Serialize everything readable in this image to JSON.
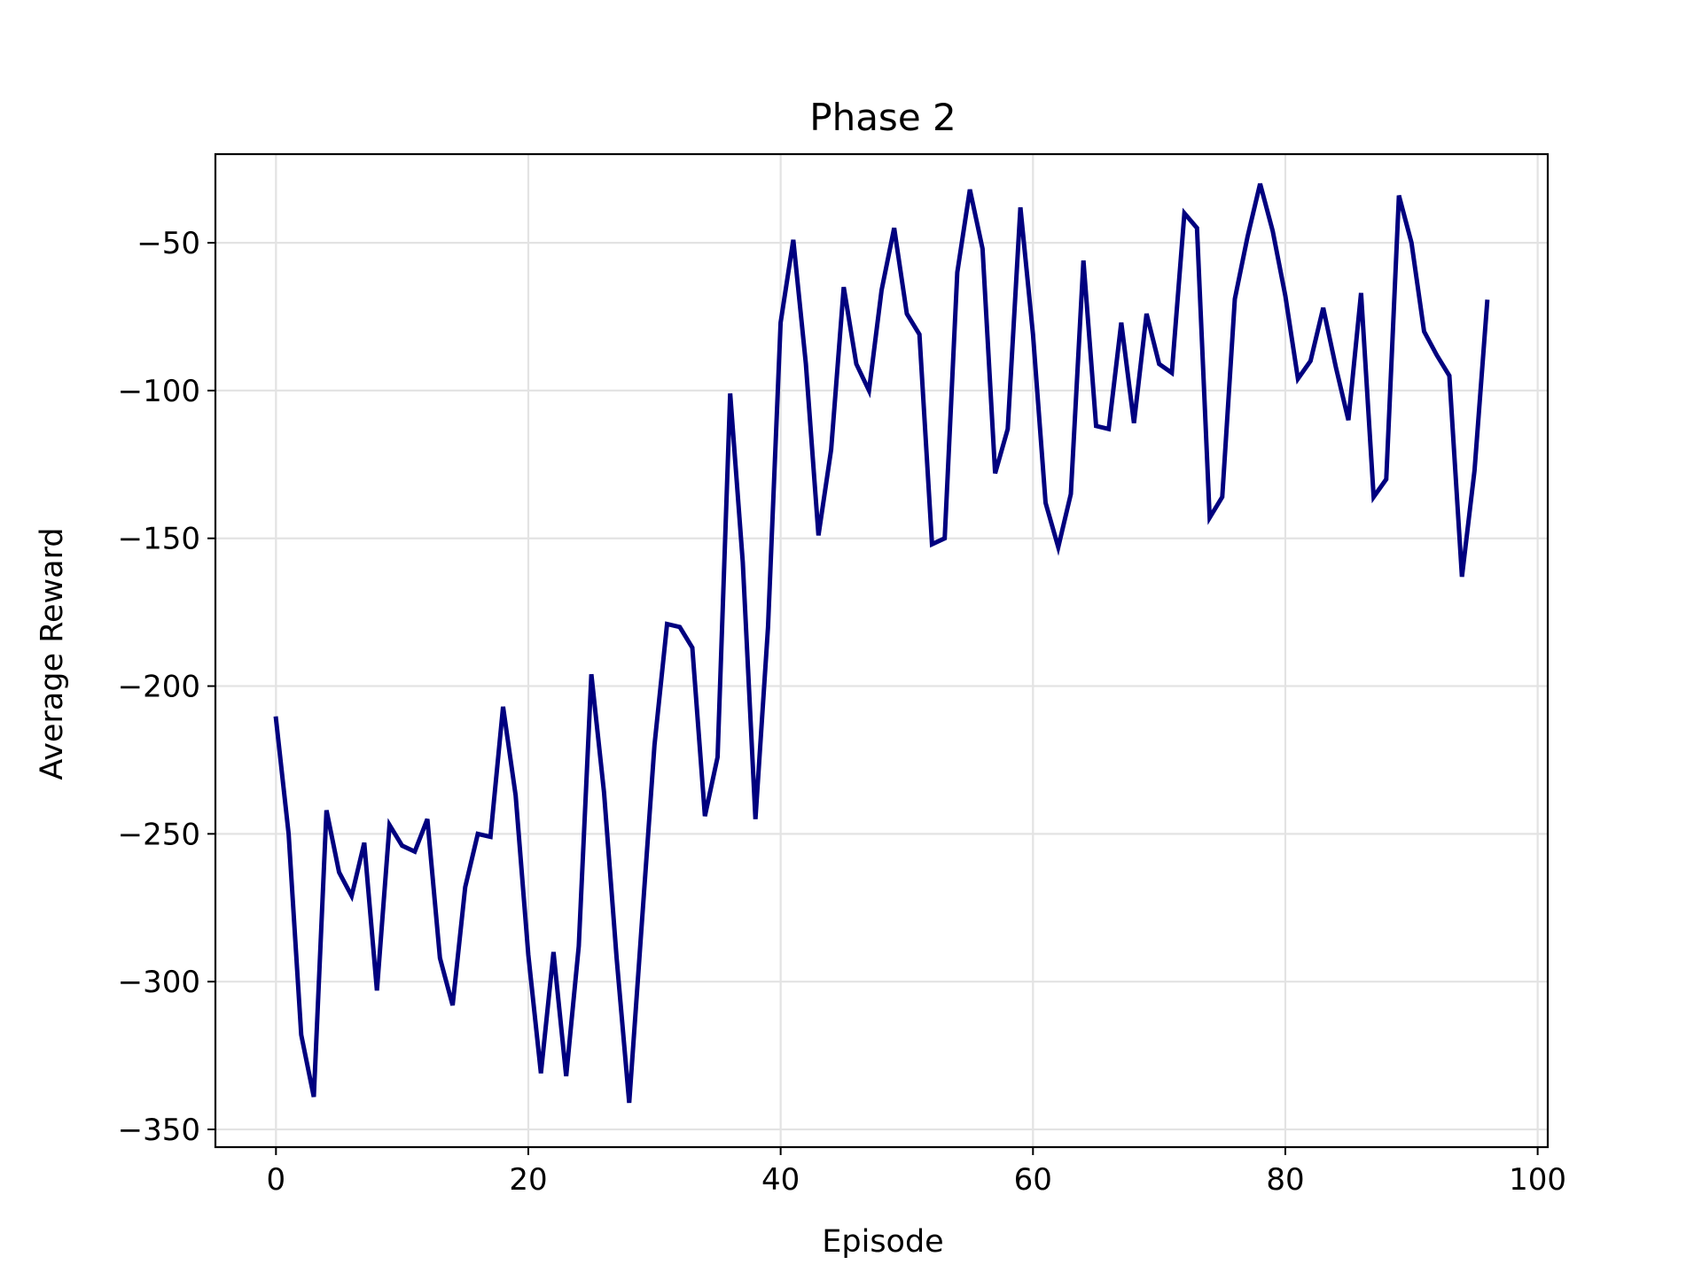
{
  "chart_data": {
    "type": "line",
    "title": "Phase 2",
    "xlabel": "Episode",
    "ylabel": "Average Reward",
    "xlim": [
      -4.8,
      100.8
    ],
    "ylim": [
      -356,
      -20
    ],
    "xticks": [
      0,
      20,
      40,
      60,
      80,
      100
    ],
    "yticks": [
      -350,
      -300,
      -250,
      -200,
      -150,
      -100,
      -50
    ],
    "grid": true,
    "series": [
      {
        "color": "#00007f",
        "x": [
          0,
          1,
          2,
          3,
          4,
          5,
          6,
          7,
          8,
          9,
          10,
          11,
          12,
          13,
          14,
          15,
          16,
          17,
          18,
          19,
          20,
          21,
          22,
          23,
          24,
          25,
          26,
          27,
          28,
          29,
          30,
          31,
          32,
          33,
          34,
          35,
          36,
          37,
          38,
          39,
          40,
          41,
          42,
          43,
          44,
          45,
          46,
          47,
          48,
          49,
          50,
          51,
          52,
          53,
          54,
          55,
          56,
          57,
          58,
          59,
          60,
          61,
          62,
          63,
          64,
          65,
          66,
          67,
          68,
          69,
          70,
          71,
          72,
          73,
          74,
          75,
          76,
          77,
          78,
          79,
          80,
          81,
          82,
          83,
          84,
          85,
          86,
          87,
          88,
          89,
          90,
          91,
          92,
          93,
          94,
          95,
          96
        ],
        "values": [
          -211,
          -250,
          -318,
          -339,
          -242,
          -263,
          -271,
          -253,
          -303,
          -247,
          -254,
          -256,
          -245,
          -292,
          -308,
          -268,
          -250,
          -251,
          -207,
          -237,
          -291,
          -331,
          -290,
          -332,
          -288,
          -196,
          -236,
          -292,
          -341,
          -280,
          -220,
          -179,
          -180,
          -187,
          -244,
          -224,
          -101,
          -158,
          -245,
          -180,
          -77,
          -49,
          -91,
          -149,
          -120,
          -65,
          -91,
          -100,
          -66,
          -45,
          -74,
          -81,
          -152,
          -150,
          -60,
          -32,
          -52,
          -128,
          -113,
          -38,
          -81,
          -138,
          -153,
          -135,
          -56,
          -112,
          -113,
          -77,
          -111,
          -74,
          -91,
          -94,
          -40,
          -45,
          -143,
          -136,
          -69,
          -48,
          -30,
          -46,
          -68,
          -96,
          -90,
          -72,
          -92,
          -110,
          -67,
          -136,
          -130,
          -34,
          -50,
          -80,
          -88,
          -95,
          -163,
          -127,
          -70
        ]
      }
    ]
  }
}
